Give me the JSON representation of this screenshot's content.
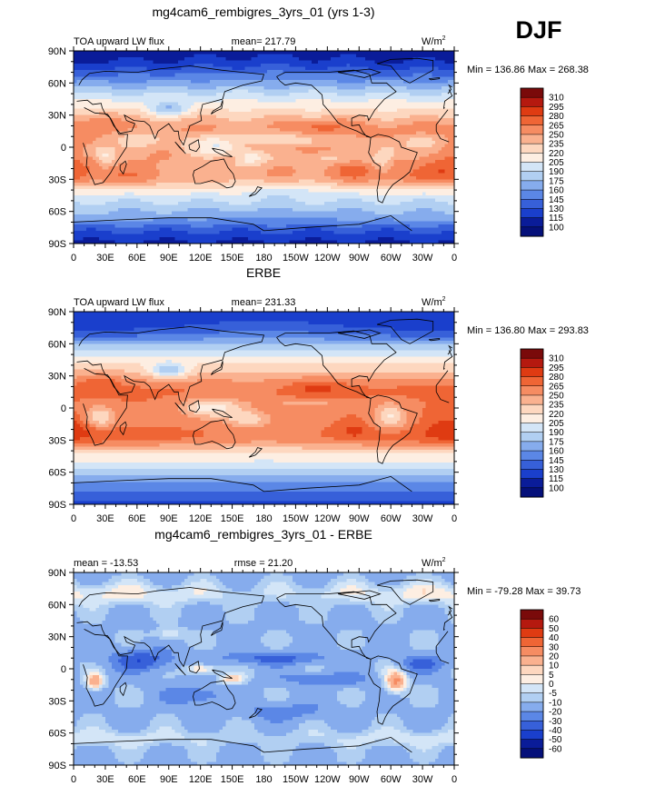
{
  "season": "DJF",
  "units_label": "W/m",
  "units_superscript": "2",
  "latitude_ticks": [
    "90N",
    "60N",
    "30N",
    "0",
    "30S",
    "60S",
    "90S"
  ],
  "longitude_ticks": [
    "0",
    "30E",
    "60E",
    "90E",
    "120E",
    "150E",
    "180",
    "150W",
    "120W",
    "90W",
    "60W",
    "30W",
    "0"
  ],
  "chart_data": [
    {
      "type": "heatmap",
      "title": "mg4cam6_rembigres_3yrs_01 (yrs 1-3)",
      "left_label": "TOA upward LW flux",
      "center_label": "mean= 217.79",
      "minmax": "Min = 136.86 Max = 268.38",
      "mean": 217.79,
      "min": 136.86,
      "max": 268.38,
      "field": "model",
      "levels": [
        "310",
        "295",
        "280",
        "265",
        "250",
        "235",
        "220",
        "205",
        "190",
        "175",
        "160",
        "145",
        "130",
        "115",
        "100"
      ],
      "colors": [
        "#7a0a0a",
        "#b5190f",
        "#df3b12",
        "#ef6535",
        "#f68c62",
        "#fab18f",
        "#fdd7bf",
        "#fdeee2",
        "#d3e5f7",
        "#b1cff2",
        "#86aced",
        "#5b87e6",
        "#3760d9",
        "#1a3fcc",
        "#0a1c99",
        "#05107a"
      ]
    },
    {
      "type": "heatmap",
      "title": "ERBE",
      "left_label": "TOA upward LW flux",
      "center_label": "mean= 231.33",
      "minmax": "Min = 136.80 Max = 293.83",
      "mean": 231.33,
      "min": 136.8,
      "max": 293.83,
      "field": "obs",
      "levels": [
        "310",
        "295",
        "280",
        "265",
        "250",
        "235",
        "220",
        "205",
        "190",
        "175",
        "160",
        "145",
        "130",
        "115",
        "100"
      ],
      "colors": [
        "#7a0a0a",
        "#b5190f",
        "#df3b12",
        "#ef6535",
        "#f68c62",
        "#fab18f",
        "#fdd7bf",
        "#fdeee2",
        "#d3e5f7",
        "#b1cff2",
        "#86aced",
        "#5b87e6",
        "#3760d9",
        "#1a3fcc",
        "#0a1c99",
        "#05107a"
      ]
    },
    {
      "type": "heatmap",
      "title": "mg4cam6_rembigres_3yrs_01 - ERBE",
      "left_label": "mean = -13.53",
      "center_label": "rmse =  21.20",
      "minmax": "Min = -79.28 Max =  39.73",
      "mean": -13.53,
      "rmse": 21.2,
      "min": -79.28,
      "max": 39.73,
      "field": "diff",
      "levels": [
        "60",
        "50",
        "40",
        "30",
        "20",
        "10",
        "5",
        "0",
        "-5",
        "-10",
        "-20",
        "-30",
        "-40",
        "-50",
        "-60"
      ],
      "colors": [
        "#7a0a0a",
        "#b5190f",
        "#df3b12",
        "#ef6535",
        "#f68c62",
        "#fab18f",
        "#fdd7bf",
        "#fdeee2",
        "#d3e5f7",
        "#b1cff2",
        "#86aced",
        "#5b87e6",
        "#3760d9",
        "#1a3fcc",
        "#0a1c99",
        "#05107a"
      ]
    }
  ]
}
